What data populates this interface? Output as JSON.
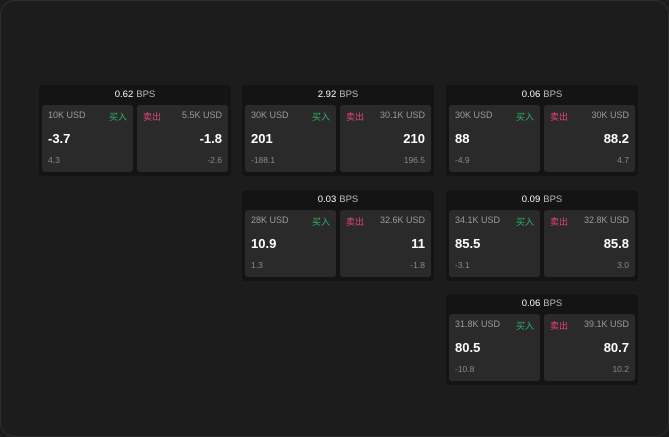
{
  "unit": "BPS",
  "buy_label": "买入",
  "sell_label": "卖出",
  "colors": {
    "buy": "#2fb36b",
    "sell": "#e0457a"
  },
  "cards": [
    {
      "spread": "0.62",
      "bid": {
        "size": "10K USD",
        "price": "-3.7",
        "change": "4.3"
      },
      "ask": {
        "size": "5.5K USD",
        "price": "-1.8",
        "change": "-2.6"
      }
    },
    {
      "spread": "2.92",
      "bid": {
        "size": "30K USD",
        "price": "201",
        "change": "-188.1"
      },
      "ask": {
        "size": "30.1K USD",
        "price": "210",
        "change": "196.5"
      }
    },
    {
      "spread": "0.06",
      "bid": {
        "size": "30K USD",
        "price": "88",
        "change": "-4.9"
      },
      "ask": {
        "size": "30K USD",
        "price": "88.2",
        "change": "4.7"
      }
    },
    {
      "spread": "0.03",
      "bid": {
        "size": "28K USD",
        "price": "10.9",
        "change": "1.3"
      },
      "ask": {
        "size": "32.6K USD",
        "price": "11",
        "change": "-1.8"
      }
    },
    {
      "spread": "0.09",
      "bid": {
        "size": "34.1K USD",
        "price": "85.5",
        "change": "-3.1"
      },
      "ask": {
        "size": "32.8K USD",
        "price": "85.8",
        "change": "3.0"
      }
    },
    {
      "spread": "0.06",
      "bid": {
        "size": "31.8K USD",
        "price": "80.5",
        "change": "-10.8"
      },
      "ask": {
        "size": "39.1K USD",
        "price": "80.7",
        "change": "10.2"
      }
    }
  ]
}
